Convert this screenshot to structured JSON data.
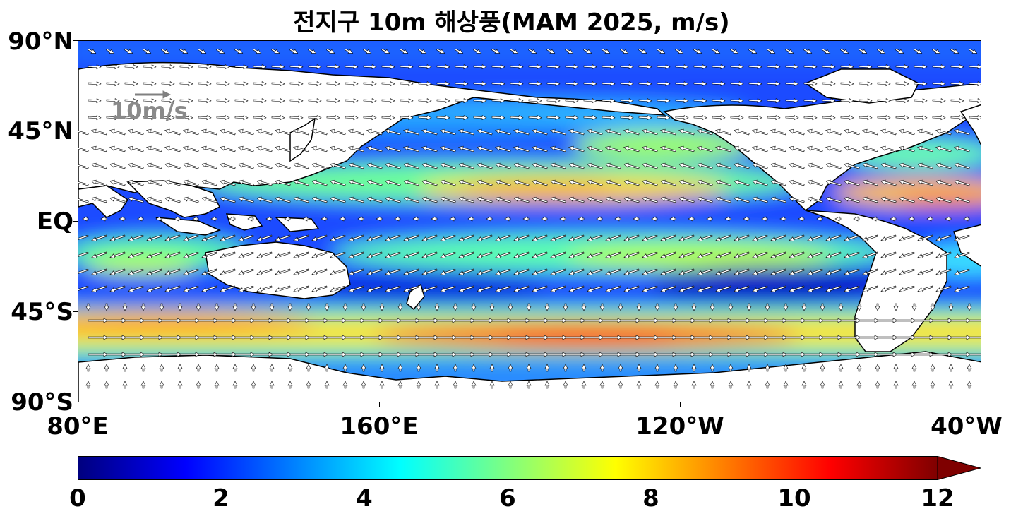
{
  "title": "전지구 10m 해상풍(MAM 2025, m/s)",
  "y_ticks": [
    "90°N",
    "45°N",
    "EQ",
    "45°S",
    "90°S"
  ],
  "x_ticks": [
    "80°E",
    "160°E",
    "120°W",
    "40°W"
  ],
  "reference_vector": {
    "label": "10m/s",
    "value": 10,
    "color": "#808080"
  },
  "colorbar": {
    "colormap": "jet",
    "min": 0,
    "max": 12,
    "extend": "max",
    "ticks": [
      "0",
      "2",
      "4",
      "6",
      "8",
      "10",
      "12"
    ]
  },
  "map": {
    "projection": "PlateCarree",
    "lon_range": [
      80,
      320
    ],
    "lat_range": [
      -90,
      90
    ],
    "variable": "10m wind speed",
    "units": "m/s",
    "land_color": "#ffffff",
    "coastline_color": "#000000",
    "vector_color": "#ffffff"
  }
}
